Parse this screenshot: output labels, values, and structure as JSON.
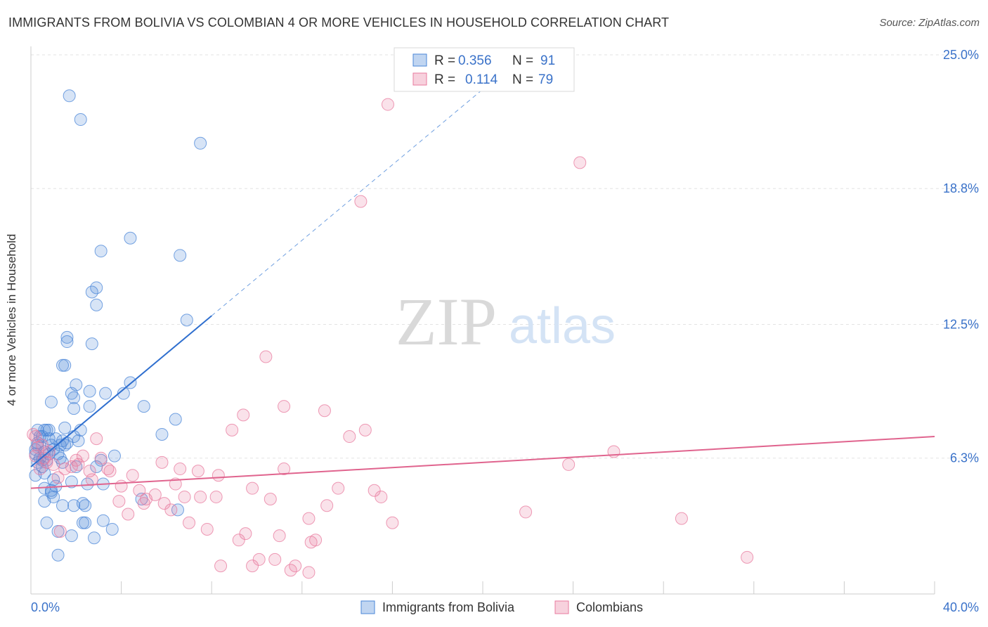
{
  "header": {
    "title": "IMMIGRANTS FROM BOLIVIA VS COLOMBIAN 4 OR MORE VEHICLES IN HOUSEHOLD CORRELATION CHART",
    "source": "Source: ZipAtlas.com"
  },
  "watermark": {
    "zip": "ZIP",
    "atlas": "atlas"
  },
  "legend": {
    "r_label": "R =",
    "n_label": "N =",
    "entries": [
      {
        "name": "Immigrants from Bolivia",
        "r": "0.356",
        "n": "91",
        "color": "#4a86d8"
      },
      {
        "name": "Colombians",
        "r": "0.114",
        "n": "79",
        "color": "#e87a9e"
      }
    ]
  },
  "chart_data": {
    "type": "scatter",
    "title": "IMMIGRANTS FROM BOLIVIA VS COLOMBIAN 4 OR MORE VEHICLES IN HOUSEHOLD CORRELATION CHART",
    "xlabel": "",
    "ylabel": "4 or more Vehicles in Household",
    "xlim": [
      0,
      40
    ],
    "ylim": [
      0,
      25
    ],
    "x_tick_labels": [
      "0.0%",
      "40.0%"
    ],
    "y_ticks": [
      6.3,
      12.5,
      18.8,
      25.0
    ],
    "y_tick_labels": [
      "6.3%",
      "12.5%",
      "18.8%",
      "25.0%"
    ],
    "grid": true,
    "series": [
      {
        "name": "Immigrants from Bolivia",
        "color": "#4a86d8",
        "trend": {
          "x": [
            0,
            8
          ],
          "y": [
            5.9,
            12.9
          ],
          "dashed_extension_to_x": 22
        },
        "points": [
          [
            1.7,
            23.1
          ],
          [
            2.2,
            22.0
          ],
          [
            7.5,
            20.9
          ],
          [
            4.4,
            16.5
          ],
          [
            3.1,
            15.9
          ],
          [
            6.6,
            15.7
          ],
          [
            2.9,
            14.2
          ],
          [
            2.7,
            14.0
          ],
          [
            2.9,
            13.4
          ],
          [
            6.9,
            12.7
          ],
          [
            1.6,
            11.9
          ],
          [
            1.6,
            11.7
          ],
          [
            2.7,
            11.6
          ],
          [
            1.4,
            10.6
          ],
          [
            1.5,
            10.6
          ],
          [
            4.4,
            9.8
          ],
          [
            2.0,
            9.7
          ],
          [
            1.8,
            9.3
          ],
          [
            2.6,
            9.4
          ],
          [
            3.3,
            9.3
          ],
          [
            4.1,
            9.3
          ],
          [
            1.9,
            9.1
          ],
          [
            0.9,
            8.9
          ],
          [
            2.6,
            8.7
          ],
          [
            1.9,
            8.6
          ],
          [
            5.0,
            8.7
          ],
          [
            6.4,
            8.1
          ],
          [
            0.3,
            7.6
          ],
          [
            0.6,
            7.6
          ],
          [
            0.8,
            7.6
          ],
          [
            1.5,
            7.7
          ],
          [
            2.2,
            7.6
          ],
          [
            5.8,
            7.4
          ],
          [
            0.5,
            7.3
          ],
          [
            1.1,
            7.2
          ],
          [
            1.4,
            7.1
          ],
          [
            1.9,
            7.3
          ],
          [
            2.1,
            7.1
          ],
          [
            0.3,
            7.0
          ],
          [
            0.9,
            6.9
          ],
          [
            1.3,
            6.9
          ],
          [
            1.5,
            6.9
          ],
          [
            0.2,
            6.7
          ],
          [
            0.6,
            6.6
          ],
          [
            0.8,
            6.5
          ],
          [
            1.2,
            6.5
          ],
          [
            0.4,
            6.3
          ],
          [
            0.7,
            6.2
          ],
          [
            3.7,
            6.4
          ],
          [
            1.4,
            6.1
          ],
          [
            3.1,
            6.2
          ],
          [
            2.9,
            5.9
          ],
          [
            0.5,
            5.9
          ],
          [
            0.2,
            5.5
          ],
          [
            1.0,
            5.3
          ],
          [
            1.8,
            5.2
          ],
          [
            2.5,
            5.1
          ],
          [
            3.2,
            5.1
          ],
          [
            1.1,
            5.0
          ],
          [
            0.6,
            4.9
          ],
          [
            0.9,
            4.7
          ],
          [
            1.0,
            4.5
          ],
          [
            4.9,
            4.4
          ],
          [
            0.6,
            4.3
          ],
          [
            1.4,
            4.1
          ],
          [
            1.9,
            4.1
          ],
          [
            2.3,
            4.2
          ],
          [
            2.4,
            4.1
          ],
          [
            6.5,
            3.9
          ],
          [
            0.7,
            3.3
          ],
          [
            2.3,
            3.3
          ],
          [
            2.4,
            3.3
          ],
          [
            3.2,
            3.4
          ],
          [
            1.2,
            2.9
          ],
          [
            3.6,
            3.0
          ],
          [
            1.8,
            2.7
          ],
          [
            2.8,
            2.6
          ],
          [
            1.2,
            1.8
          ],
          [
            0.3,
            6.9
          ],
          [
            0.5,
            6.2
          ],
          [
            0.8,
            7.2
          ],
          [
            1.0,
            6.7
          ],
          [
            0.4,
            7.3
          ],
          [
            2.0,
            5.9
          ],
          [
            0.6,
            5.6
          ],
          [
            1.3,
            6.3
          ],
          [
            0.3,
            6.1
          ],
          [
            0.7,
            7.6
          ],
          [
            1.6,
            7.0
          ],
          [
            0.9,
            4.8
          ],
          [
            0.2,
            6.5
          ]
        ]
      },
      {
        "name": "Colombians",
        "color": "#e87a9e",
        "trend": {
          "x": [
            0,
            40
          ],
          "y": [
            4.9,
            7.3
          ]
        },
        "points": [
          [
            15.8,
            22.7
          ],
          [
            24.3,
            20.0
          ],
          [
            14.6,
            18.2
          ],
          [
            10.4,
            11.0
          ],
          [
            11.2,
            8.7
          ],
          [
            9.4,
            8.3
          ],
          [
            13.0,
            8.5
          ],
          [
            8.9,
            7.6
          ],
          [
            14.8,
            7.6
          ],
          [
            14.1,
            7.3
          ],
          [
            2.9,
            7.2
          ],
          [
            0.2,
            7.3
          ],
          [
            25.8,
            6.6
          ],
          [
            2.3,
            6.4
          ],
          [
            3.1,
            6.3
          ],
          [
            5.8,
            6.1
          ],
          [
            23.8,
            6.0
          ],
          [
            2.1,
            6.0
          ],
          [
            11.2,
            5.8
          ],
          [
            6.6,
            5.8
          ],
          [
            7.4,
            5.7
          ],
          [
            2.6,
            5.7
          ],
          [
            3.5,
            5.7
          ],
          [
            8.3,
            5.5
          ],
          [
            4.5,
            5.5
          ],
          [
            1.2,
            5.4
          ],
          [
            0.3,
            6.8
          ],
          [
            1.8,
            5.9
          ],
          [
            0.7,
            6.1
          ],
          [
            0.4,
            5.8
          ],
          [
            4.0,
            5.0
          ],
          [
            6.4,
            5.1
          ],
          [
            9.8,
            4.9
          ],
          [
            13.6,
            4.9
          ],
          [
            15.2,
            4.8
          ],
          [
            4.8,
            4.8
          ],
          [
            5.5,
            4.6
          ],
          [
            7.5,
            4.5
          ],
          [
            8.2,
            4.5
          ],
          [
            15.5,
            4.5
          ],
          [
            10.6,
            4.4
          ],
          [
            6.8,
            4.5
          ],
          [
            5.1,
            4.4
          ],
          [
            5.0,
            4.2
          ],
          [
            3.9,
            4.3
          ],
          [
            5.9,
            4.2
          ],
          [
            13.1,
            4.1
          ],
          [
            6.2,
            3.9
          ],
          [
            4.3,
            3.7
          ],
          [
            21.9,
            3.8
          ],
          [
            12.3,
            3.5
          ],
          [
            16.0,
            3.3
          ],
          [
            28.8,
            3.5
          ],
          [
            7.0,
            3.3
          ],
          [
            7.8,
            3.0
          ],
          [
            9.5,
            2.8
          ],
          [
            11.0,
            2.7
          ],
          [
            9.2,
            2.5
          ],
          [
            12.6,
            2.5
          ],
          [
            12.4,
            2.4
          ],
          [
            1.3,
            2.9
          ],
          [
            31.7,
            1.7
          ],
          [
            10.1,
            1.6
          ],
          [
            10.8,
            1.6
          ],
          [
            8.4,
            1.3
          ],
          [
            11.5,
            1.1
          ],
          [
            11.7,
            1.3
          ],
          [
            12.3,
            1.0
          ],
          [
            9.8,
            1.3
          ],
          [
            0.6,
            6.3
          ],
          [
            1.0,
            6.0
          ],
          [
            0.1,
            7.4
          ],
          [
            0.5,
            6.9
          ],
          [
            1.5,
            5.8
          ],
          [
            2.0,
            6.2
          ],
          [
            3.4,
            5.8
          ],
          [
            0.8,
            6.6
          ],
          [
            0.2,
            6.4
          ],
          [
            2.7,
            5.3
          ]
        ]
      }
    ]
  }
}
